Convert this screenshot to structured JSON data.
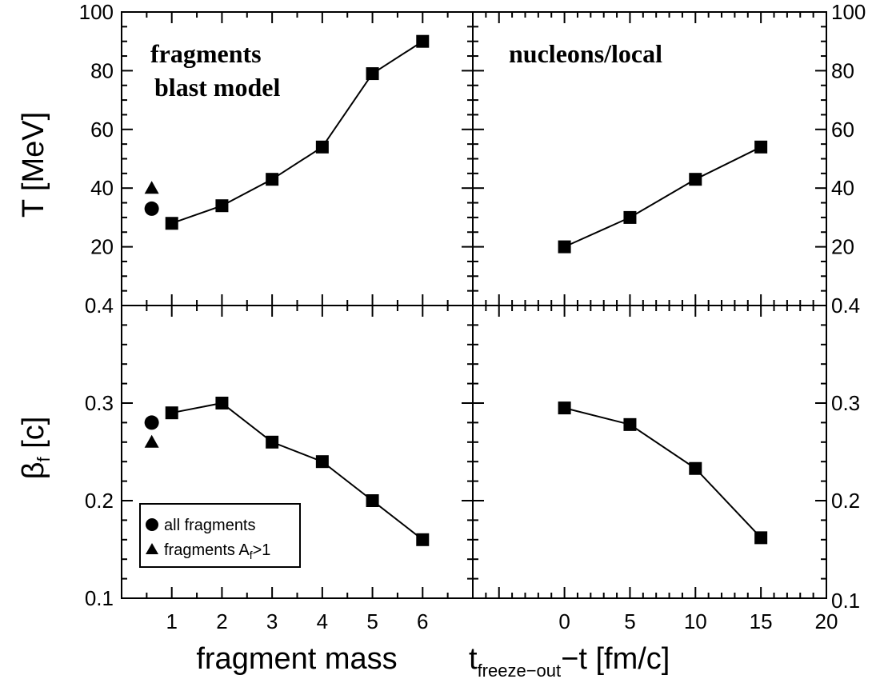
{
  "chart_data": [
    {
      "type": "line",
      "panel": "top-left",
      "label_lines": [
        "fragments",
        "blast model"
      ],
      "ylabel": "T [MeV]",
      "xlabel": "fragment mass",
      "xlim": [
        0,
        7
      ],
      "ylim": [
        0,
        100
      ],
      "x_ticks": [
        "1",
        "2",
        "3",
        "4",
        "5",
        "6"
      ],
      "y_ticks": [
        "20",
        "40",
        "60",
        "80",
        "100"
      ],
      "series": [
        {
          "marker": "square",
          "connected": true,
          "points": [
            [
              1,
              28
            ],
            [
              2,
              34
            ],
            [
              3,
              43
            ],
            [
              4,
              54
            ],
            [
              5,
              79
            ],
            [
              6,
              90
            ]
          ]
        },
        {
          "name": "all fragments",
          "marker": "circle",
          "connected": false,
          "points": [
            [
              0.6,
              33
            ]
          ]
        },
        {
          "name": "fragments A_f>1",
          "marker": "triangle",
          "connected": false,
          "points": [
            [
              0.6,
              40
            ]
          ]
        }
      ]
    },
    {
      "type": "line",
      "panel": "top-right",
      "label_lines": [
        "nucleons/local"
      ],
      "xlim": [
        -7,
        20
      ],
      "ylim": [
        0,
        100
      ],
      "y_ticks": [
        "20",
        "40",
        "60",
        "80",
        "100"
      ],
      "series": [
        {
          "marker": "square",
          "connected": true,
          "points": [
            [
              0,
              20
            ],
            [
              5,
              30
            ],
            [
              10,
              43
            ],
            [
              15,
              54
            ]
          ]
        }
      ]
    },
    {
      "type": "line",
      "panel": "bottom-left",
      "ylabel_main": "β",
      "ylabel_sub": "f",
      "ylabel_rest": " [c]",
      "xlabel": "fragment mass",
      "xlim": [
        0,
        7
      ],
      "ylim": [
        0.1,
        0.4
      ],
      "y_ticks": [
        "0.1",
        "0.2",
        "0.3",
        "0.4"
      ],
      "x_ticks": [
        "1",
        "2",
        "3",
        "4",
        "5",
        "6"
      ],
      "series": [
        {
          "marker": "square",
          "connected": true,
          "points": [
            [
              1,
              0.29
            ],
            [
              2,
              0.3
            ],
            [
              3,
              0.26
            ],
            [
              4,
              0.24
            ],
            [
              5,
              0.2
            ],
            [
              6,
              0.16
            ]
          ]
        },
        {
          "name": "all fragments",
          "marker": "circle",
          "connected": false,
          "points": [
            [
              0.6,
              0.28
            ]
          ]
        },
        {
          "name": "fragments A_f>1",
          "marker": "triangle",
          "connected": false,
          "points": [
            [
              0.6,
              0.26
            ]
          ]
        }
      ],
      "legend": {
        "placement": "bottom-left",
        "entries": [
          {
            "marker": "circle",
            "label": "all fragments"
          },
          {
            "marker": "triangle",
            "label_main": "fragments A",
            "label_sub": "f",
            "label_rest": ">1"
          }
        ]
      }
    },
    {
      "type": "line",
      "panel": "bottom-right",
      "xlabel_main": "t",
      "xlabel_sub": "freeze−out",
      "xlabel_rest": "−t [fm/c]",
      "xlim": [
        -7,
        20
      ],
      "ylim": [
        0.1,
        0.4
      ],
      "x_ticks": [
        "0",
        "5",
        "10",
        "15",
        "20"
      ],
      "y_ticks": [
        "0.1",
        "0.2",
        "0.3",
        "0.4"
      ],
      "series": [
        {
          "marker": "square",
          "connected": true,
          "points": [
            [
              0,
              0.295
            ],
            [
              5,
              0.278
            ],
            [
              10,
              0.233
            ],
            [
              15,
              0.162
            ]
          ]
        }
      ]
    }
  ]
}
